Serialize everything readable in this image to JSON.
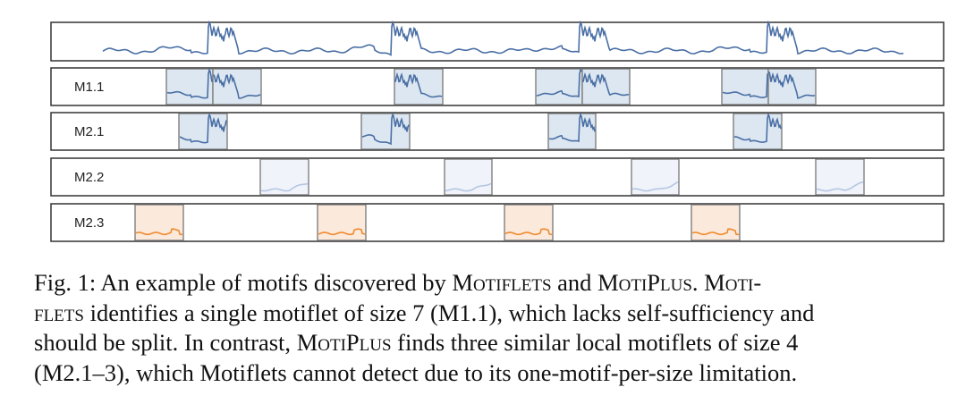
{
  "figure": {
    "rows": [
      {
        "label": "M1.1"
      },
      {
        "label": "M2.1"
      },
      {
        "label": "M2.2"
      },
      {
        "label": "M2.3"
      }
    ]
  },
  "caption": {
    "lines": [
      [
        {
          "text": "Fig. 1: An example of motifs discovered by ",
          "small_caps": false
        },
        {
          "text": "Motiflets",
          "small_caps": true
        },
        {
          "text": " and ",
          "small_caps": false
        },
        {
          "text": "MotiPlus",
          "small_caps": true
        },
        {
          "text": ". ",
          "small_caps": false
        },
        {
          "text": "Moti-",
          "small_caps": true
        }
      ],
      [
        {
          "text": "flets",
          "small_caps": true
        },
        {
          "text": " identifies a single motiflet of size 7 (M1.1), which lacks self-sufficiency and",
          "small_caps": false
        }
      ],
      [
        {
          "text": "should be split. In contrast, ",
          "small_caps": false
        },
        {
          "text": "MotiPlus",
          "small_caps": true
        },
        {
          "text": " finds three similar local motiflets of size 4",
          "small_caps": false
        }
      ],
      [
        {
          "text": "(M2.1–3), which Motiflets cannot detect due to its one-motif-per-size limitation.",
          "small_caps": false
        }
      ]
    ]
  }
}
